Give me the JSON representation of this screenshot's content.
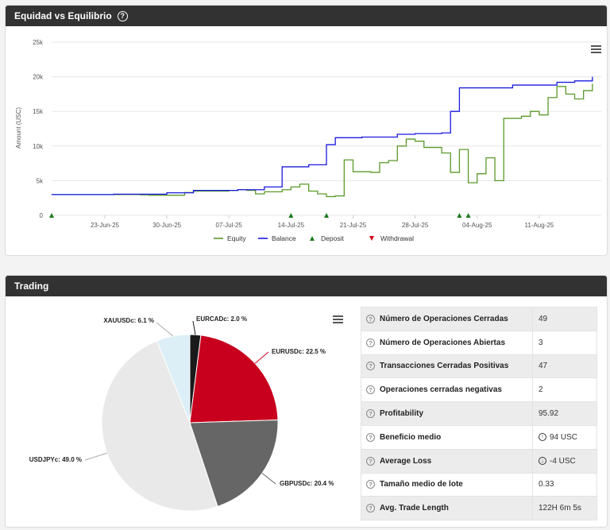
{
  "equity_panel": {
    "title": "Equidad vs Equilibrio",
    "help_icon": "question-circle-icon",
    "menu_icon": "hamburger-menu-icon"
  },
  "trading_panel": {
    "title": "Trading",
    "menu_icon": "hamburger-menu-icon",
    "stats": [
      {
        "label": "Número de Operaciones Cerradas",
        "value": "49",
        "tone": "normal"
      },
      {
        "label": "Número de Operaciones Abiertas",
        "value": "3",
        "tone": "normal"
      },
      {
        "label": "Transacciones Cerradas Positivas",
        "value": "47",
        "tone": "positive"
      },
      {
        "label": "Operaciones cerradas negativas",
        "value": "2",
        "tone": "negative"
      },
      {
        "label": "Profitability",
        "value": "95.92",
        "tone": "normal"
      },
      {
        "label": "Beneficio medio",
        "value": "94 USC",
        "tone": "positive",
        "icon": "arrow-up-circle-icon"
      },
      {
        "label": "Average Loss",
        "value": "-4 USC",
        "tone": "negative",
        "icon": "arrow-down-circle-icon"
      },
      {
        "label": "Tamaño medio de lote",
        "value": "0.33",
        "tone": "normal"
      },
      {
        "label": "Avg. Trade Length",
        "value": "122H 6m 5s",
        "tone": "normal"
      }
    ]
  },
  "chart_data": [
    {
      "type": "line",
      "ylabel": "Amount (USC)",
      "ylim": [
        0,
        25000
      ],
      "y_ticks": [
        "0",
        "5k",
        "10k",
        "15k",
        "20k",
        "25k"
      ],
      "x_ticks": [
        "23-Jun-25",
        "30-Jun-25",
        "07-Jul-25",
        "14-Jul-25",
        "21-Jul-25",
        "28-Jul-25",
        "04-Aug-25",
        "11-Aug-25"
      ],
      "xlim": [
        "2025-06-17",
        "2025-08-18"
      ],
      "grid": true,
      "legend_position": "bottom",
      "series": [
        {
          "name": "Equity",
          "color": "#5b9a2a",
          "points": [
            [
              "2025-06-17",
              3000
            ],
            [
              "2025-06-24",
              3000
            ],
            [
              "2025-06-27",
              2950
            ],
            [
              "2025-06-28",
              2900
            ],
            [
              "2025-07-01",
              2900
            ],
            [
              "2025-07-02",
              3300
            ],
            [
              "2025-07-03",
              3500
            ],
            [
              "2025-07-07",
              3600
            ],
            [
              "2025-07-08",
              3700
            ],
            [
              "2025-07-09",
              3600
            ],
            [
              "2025-07-10",
              3100
            ],
            [
              "2025-07-11",
              3400
            ],
            [
              "2025-07-13",
              3700
            ],
            [
              "2025-07-14",
              4100
            ],
            [
              "2025-07-15",
              4500
            ],
            [
              "2025-07-16",
              3500
            ],
            [
              "2025-07-17",
              3100
            ],
            [
              "2025-07-18",
              2700
            ],
            [
              "2025-07-19",
              2800
            ],
            [
              "2025-07-20",
              8000
            ],
            [
              "2025-07-21",
              6300
            ],
            [
              "2025-07-23",
              6200
            ],
            [
              "2025-07-24",
              7600
            ],
            [
              "2025-07-25",
              7900
            ],
            [
              "2025-07-26",
              10000
            ],
            [
              "2025-07-27",
              11000
            ],
            [
              "2025-07-28",
              10700
            ],
            [
              "2025-07-29",
              9800
            ],
            [
              "2025-07-31",
              9000
            ],
            [
              "2025-08-01",
              6200
            ],
            [
              "2025-08-02",
              9500
            ],
            [
              "2025-08-03",
              4700
            ],
            [
              "2025-08-04",
              6000
            ],
            [
              "2025-08-05",
              8300
            ],
            [
              "2025-08-06",
              5000
            ],
            [
              "2025-08-07",
              14000
            ],
            [
              "2025-08-09",
              14300
            ],
            [
              "2025-08-10",
              15000
            ],
            [
              "2025-08-11",
              14500
            ],
            [
              "2025-08-12",
              17000
            ],
            [
              "2025-08-13",
              18600
            ],
            [
              "2025-08-14",
              17500
            ],
            [
              "2025-08-15",
              16800
            ],
            [
              "2025-08-16",
              18000
            ],
            [
              "2025-08-17",
              19000
            ]
          ]
        },
        {
          "name": "Balance",
          "color": "#1a1ae0",
          "points": [
            [
              "2025-06-17",
              3000
            ],
            [
              "2025-06-24",
              3050
            ],
            [
              "2025-06-30",
              3250
            ],
            [
              "2025-07-03",
              3600
            ],
            [
              "2025-07-08",
              3700
            ],
            [
              "2025-07-11",
              4100
            ],
            [
              "2025-07-13",
              7000
            ],
            [
              "2025-07-16",
              7300
            ],
            [
              "2025-07-18",
              10200
            ],
            [
              "2025-07-19",
              11200
            ],
            [
              "2025-07-22",
              11300
            ],
            [
              "2025-07-26",
              11700
            ],
            [
              "2025-07-28",
              11800
            ],
            [
              "2025-07-31",
              11900
            ],
            [
              "2025-08-01",
              15000
            ],
            [
              "2025-08-02",
              18400
            ],
            [
              "2025-08-08",
              18800
            ],
            [
              "2025-08-13",
              19200
            ],
            [
              "2025-08-15",
              19400
            ],
            [
              "2025-08-17",
              20000
            ]
          ]
        },
        {
          "name": "Deposit",
          "color": "#1f7a1f",
          "marker": "triangle-up",
          "dates": [
            "2025-06-17",
            "2025-07-14",
            "2025-07-18",
            "2025-08-02",
            "2025-08-03"
          ]
        },
        {
          "name": "Withdrawal",
          "color": "#d0021b",
          "marker": "triangle-down",
          "dates": []
        }
      ]
    },
    {
      "type": "pie",
      "slices": [
        {
          "label": "EURCADc: 2.0 %",
          "value": 2.0,
          "color": "#1a1a1a"
        },
        {
          "label": "EURUSDc: 22.5 %",
          "value": 22.5,
          "color": "#c8001e"
        },
        {
          "label": "GBPUSDc: 20.4 %",
          "value": 20.4,
          "color": "#666666"
        },
        {
          "label": "USDJPYc: 49.0 %",
          "value": 49.0,
          "color": "#e9e9e9"
        },
        {
          "label": "XAUUSDc: 6.1 %",
          "value": 6.1,
          "color": "#dceef6"
        }
      ]
    }
  ]
}
